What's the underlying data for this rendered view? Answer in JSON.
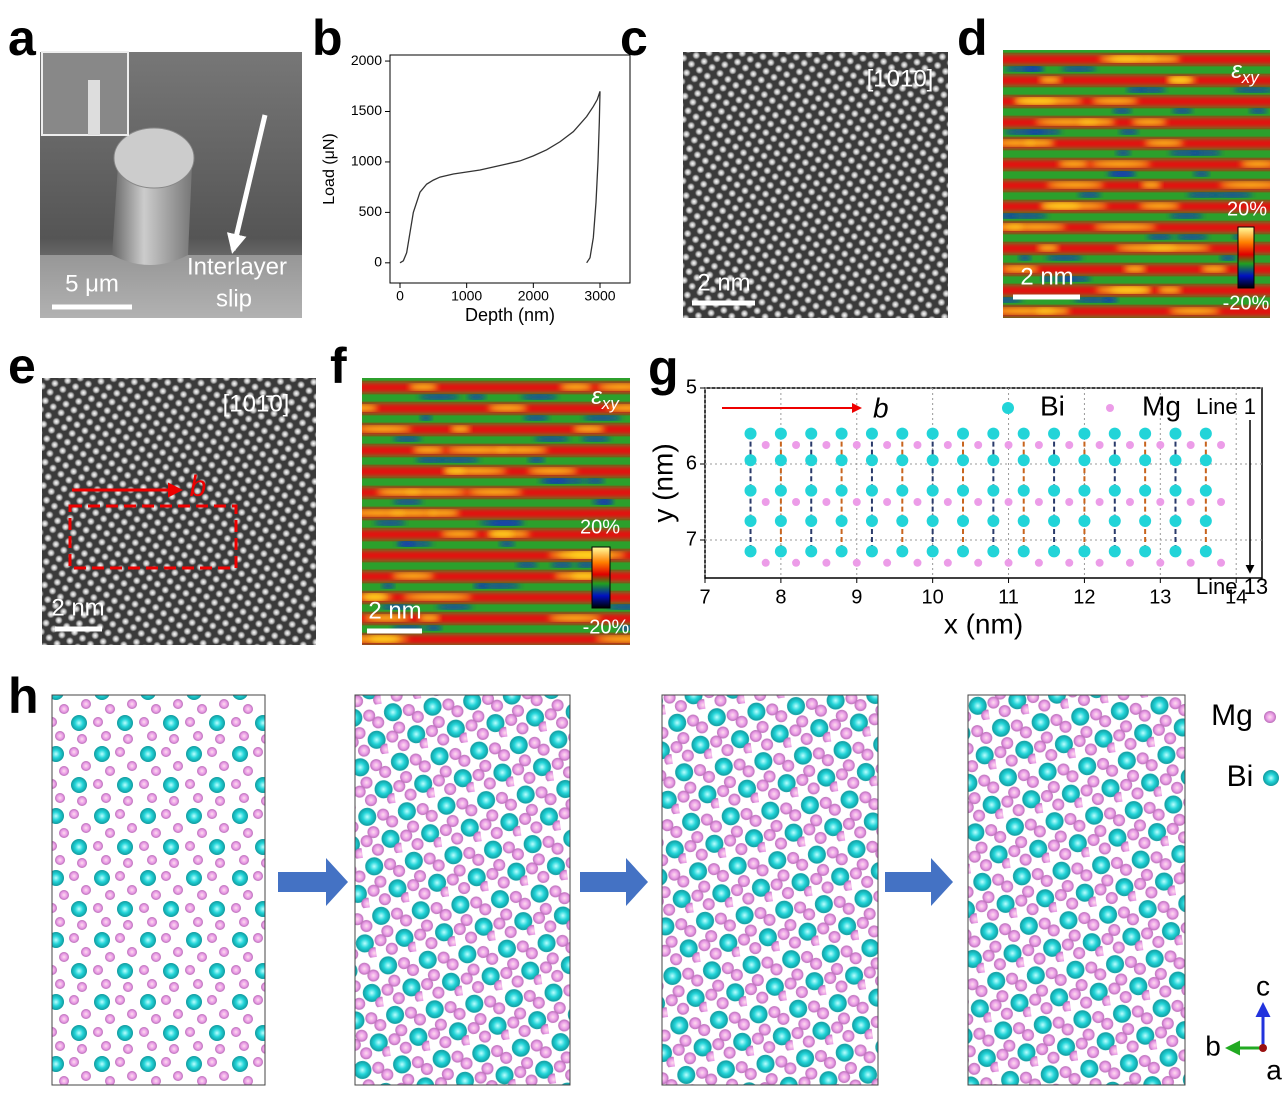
{
  "panels": {
    "a": {
      "label": "a",
      "scale_bar": "5 μm",
      "annotation_lines": [
        "Interlayer",
        "slip"
      ]
    },
    "b": {
      "label": "b"
    },
    "c": {
      "label": "c",
      "direction": "[101̄0]",
      "scale_bar": "2 nm"
    },
    "d": {
      "label": "d",
      "symbol": "ε",
      "subscript": "xy",
      "colorbar_max": "20%",
      "colorbar_min": "-20%",
      "scale_bar": "2 nm"
    },
    "e": {
      "label": "e",
      "direction": "[101̄0]",
      "vector": "b",
      "scale_bar": "2 nm"
    },
    "f": {
      "label": "f",
      "symbol": "ε",
      "subscript": "xy",
      "colorbar_max": "20%",
      "colorbar_min": "-20%",
      "scale_bar": "2 nm"
    },
    "g": {
      "label": "g"
    },
    "h": {
      "label": "h",
      "legend": [
        "Mg",
        "Bi"
      ],
      "axes": [
        "c",
        "b",
        "a"
      ]
    }
  },
  "chart_data": [
    {
      "type": "line",
      "x_label": "Depth (nm)",
      "y_label": "Load (μN)",
      "color": "#333333",
      "x": [
        0,
        50,
        100,
        150,
        200,
        300,
        400,
        500,
        600,
        800,
        1000,
        1200,
        1400,
        1600,
        1800,
        2000,
        2200,
        2400,
        2600,
        2800,
        2900,
        2960,
        2990,
        3000,
        2990,
        2970,
        2940,
        2900,
        2850,
        2800
      ],
      "values": [
        0,
        20,
        100,
        300,
        500,
        700,
        780,
        820,
        850,
        880,
        900,
        920,
        950,
        980,
        1010,
        1060,
        1120,
        1200,
        1300,
        1450,
        1550,
        1620,
        1680,
        1700,
        1400,
        1000,
        600,
        250,
        50,
        0
      ],
      "xlim": [
        -150,
        3450
      ],
      "ylim": [
        -200,
        2060
      ],
      "xticks": [
        0,
        1000,
        2000,
        3000
      ],
      "yticks": [
        0,
        500,
        1000,
        1500,
        2000
      ]
    },
    {
      "type": "scatter",
      "x_label": "x (nm)",
      "y_label": "y (nm)",
      "vector": "b",
      "line_labels": [
        "Line 1",
        "Line 13"
      ],
      "xlim": [
        7,
        14.34
      ],
      "ylim": [
        5,
        7.5
      ],
      "y_inverted": true,
      "grid": true,
      "xticks": [
        7,
        8,
        9,
        10,
        11,
        12,
        13,
        14
      ],
      "yticks": [
        5,
        6,
        7
      ],
      "series": [
        {
          "name": "Bi",
          "color": "#22d4d8",
          "x": [
            7.6,
            8,
            8.4,
            8.8,
            9.2,
            9.6,
            10,
            10.4,
            10.8,
            11.2,
            11.6,
            12,
            12.4,
            12.8,
            13.2,
            13.6,
            7.6,
            8,
            8.4,
            8.8,
            9.2,
            9.6,
            10,
            10.4,
            10.8,
            11.2,
            11.6,
            12,
            12.4,
            12.8,
            13.2,
            13.6,
            7.6,
            8,
            8.4,
            8.8,
            9.2,
            9.6,
            10,
            10.4,
            10.8,
            11.2,
            11.6,
            12,
            12.4,
            12.8,
            13.2,
            13.6,
            7.6,
            8,
            8.4,
            8.8,
            9.2,
            9.6,
            10,
            10.4,
            10.8,
            11.2,
            11.6,
            12,
            12.4,
            12.8,
            13.2,
            13.6,
            7.6,
            8,
            8.4,
            8.8,
            9.2,
            9.6,
            10,
            10.4,
            10.8,
            11.2,
            11.6,
            12,
            12.4,
            12.8,
            13.2,
            13.6
          ],
          "y": [
            5.6,
            5.6,
            5.6,
            5.6,
            5.6,
            5.6,
            5.6,
            5.6,
            5.6,
            5.6,
            5.6,
            5.6,
            5.6,
            5.6,
            5.6,
            5.6,
            5.95,
            5.95,
            5.95,
            5.95,
            5.95,
            5.95,
            5.95,
            5.95,
            5.95,
            5.95,
            5.95,
            5.95,
            5.95,
            5.95,
            5.95,
            5.95,
            6.35,
            6.35,
            6.35,
            6.35,
            6.35,
            6.35,
            6.35,
            6.35,
            6.35,
            6.35,
            6.35,
            6.35,
            6.35,
            6.35,
            6.35,
            6.35,
            6.75,
            6.75,
            6.75,
            6.75,
            6.75,
            6.75,
            6.75,
            6.75,
            6.75,
            6.75,
            6.75,
            6.75,
            6.75,
            6.75,
            6.75,
            6.75,
            7.15,
            7.15,
            7.15,
            7.15,
            7.15,
            7.15,
            7.15,
            7.15,
            7.15,
            7.15,
            7.15,
            7.15,
            7.15,
            7.15,
            7.15,
            7.15
          ]
        },
        {
          "name": "Mg",
          "color": "#ec9ce8",
          "x": [
            7.8,
            8.2,
            8.6,
            9,
            9.4,
            9.8,
            10.2,
            10.6,
            11,
            11.4,
            11.8,
            12.2,
            12.6,
            13,
            13.4,
            13.8,
            7.8,
            8.2,
            8.6,
            9,
            9.4,
            9.8,
            10.2,
            10.6,
            11,
            11.4,
            11.8,
            12.2,
            12.6,
            13,
            13.4,
            13.8,
            7.8,
            8.2,
            8.6,
            9,
            9.4,
            9.8,
            10.2,
            10.6,
            11,
            11.4,
            11.8,
            12.2,
            12.6,
            13,
            13.4,
            13.8
          ],
          "y": [
            5.75,
            5.75,
            5.75,
            5.75,
            5.75,
            5.75,
            5.75,
            5.75,
            5.75,
            5.75,
            5.75,
            5.75,
            5.75,
            5.75,
            5.75,
            5.75,
            6.5,
            6.5,
            6.5,
            6.5,
            6.5,
            6.5,
            6.5,
            6.5,
            6.5,
            6.5,
            6.5,
            6.5,
            6.5,
            6.5,
            6.5,
            6.5,
            7.3,
            7.3,
            7.3,
            7.3,
            7.3,
            7.3,
            7.3,
            7.3,
            7.3,
            7.3,
            7.3,
            7.3,
            7.3,
            7.3,
            7.3,
            7.3
          ]
        }
      ]
    }
  ]
}
